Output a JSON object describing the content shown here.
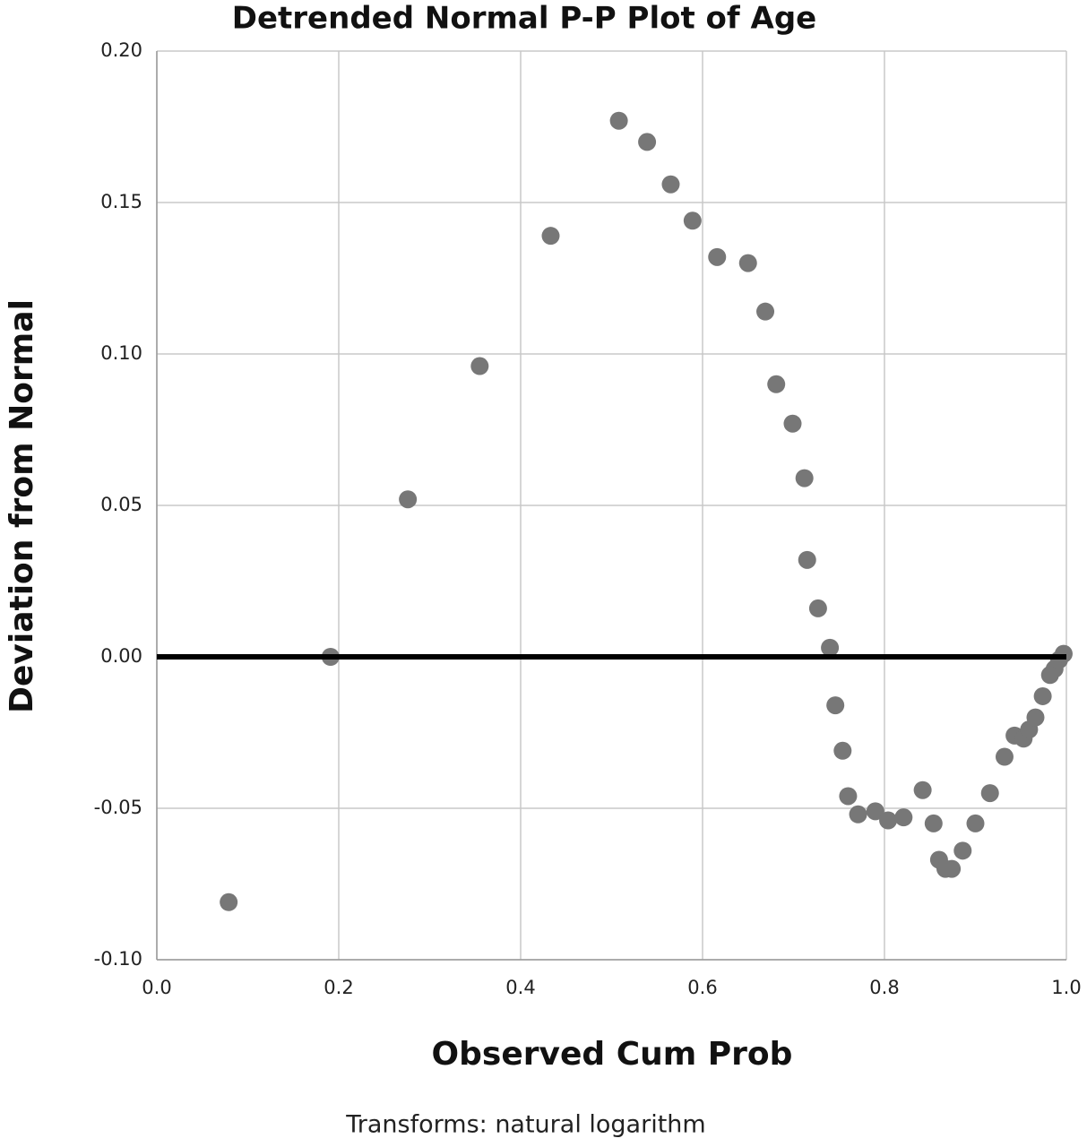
{
  "chart_data": {
    "type": "scatter",
    "title": "Detrended Normal P-P Plot of Age",
    "x_label": "Observed Cum Prob",
    "y_label": "Deviation from Normal",
    "footnote": "Transforms: natural logarithm",
    "color": "#777777",
    "grid": true,
    "reference_line": 0,
    "xlim": [
      0,
      1
    ],
    "ylim": [
      -0.1,
      0.2
    ],
    "xticks": [
      {
        "value": 0,
        "label": "0.0"
      },
      0.2,
      0.4,
      0.6,
      0.8,
      {
        "value": 1,
        "label": "1.0"
      }
    ],
    "yticks": [
      {
        "value": -0.1,
        "label": "-0.10"
      },
      -0.05,
      {
        "value": 0,
        "label": "0.00"
      },
      0.05,
      {
        "value": 0.1,
        "label": "0.10"
      },
      0.15,
      {
        "value": 0.2,
        "label": "0.20"
      }
    ],
    "x": [
      0.079,
      0.191,
      0.276,
      0.355,
      0.433,
      0.508,
      0.539,
      0.565,
      0.589,
      0.616,
      0.65,
      0.669,
      0.681,
      0.699,
      0.712,
      0.715,
      0.727,
      0.74,
      0.746,
      0.754,
      0.76,
      0.771,
      0.79,
      0.804,
      0.821,
      0.842,
      0.854,
      0.86,
      0.867,
      0.874,
      0.886,
      0.9,
      0.916,
      0.932,
      0.943,
      0.953,
      0.959,
      0.966,
      0.974,
      0.982,
      0.987,
      0.992,
      0.997
    ],
    "values": [
      -0.081,
      0.0,
      0.052,
      0.096,
      0.139,
      0.177,
      0.17,
      0.156,
      0.144,
      0.132,
      0.13,
      0.114,
      0.09,
      0.077,
      0.059,
      0.032,
      0.016,
      0.003,
      -0.016,
      -0.031,
      -0.046,
      -0.052,
      -0.051,
      -0.054,
      -0.053,
      -0.044,
      -0.055,
      -0.067,
      -0.07,
      -0.07,
      -0.064,
      -0.055,
      -0.045,
      -0.033,
      -0.026,
      -0.027,
      -0.024,
      -0.02,
      -0.013,
      -0.006,
      -0.004,
      -0.001,
      0.001
    ]
  }
}
